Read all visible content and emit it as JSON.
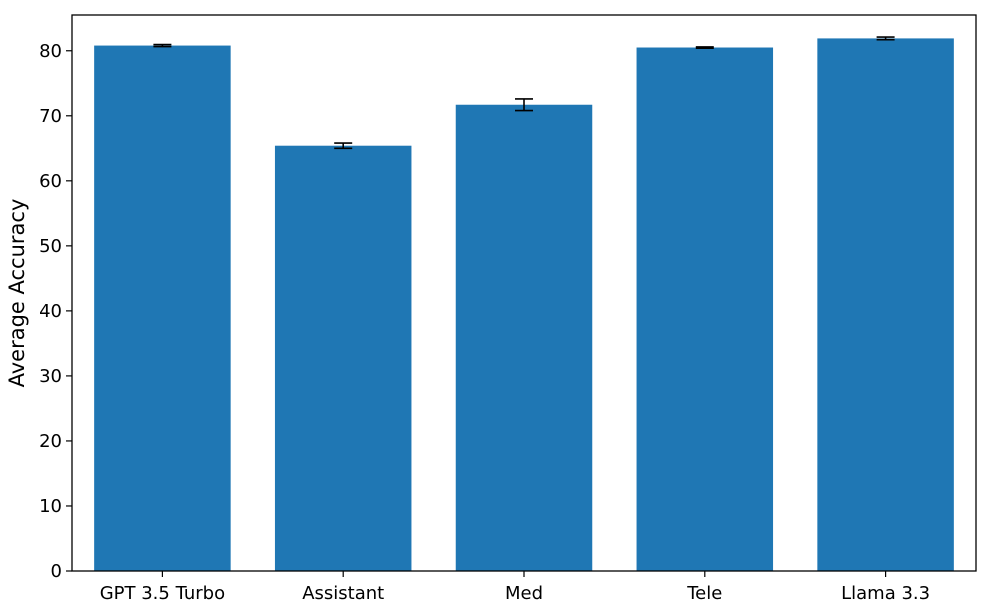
{
  "chart_data": {
    "type": "bar",
    "categories": [
      "GPT 3.5 Turbo",
      "Assistant",
      "Med",
      "Tele",
      "Llama 3.3"
    ],
    "values": [
      80.8,
      65.4,
      71.7,
      80.5,
      81.9
    ],
    "error": [
      0.15,
      0.4,
      0.9,
      0.1,
      0.2
    ],
    "title": "",
    "xlabel": "",
    "ylabel": "Average Accuracy",
    "ylim": [
      0,
      85.5
    ],
    "yticks": [
      "0",
      "10",
      "20",
      "30",
      "40",
      "50",
      "60",
      "70",
      "80"
    ],
    "grid": false,
    "legend": "none",
    "bar_color": "#1f77b4",
    "error_color": "#000000"
  }
}
